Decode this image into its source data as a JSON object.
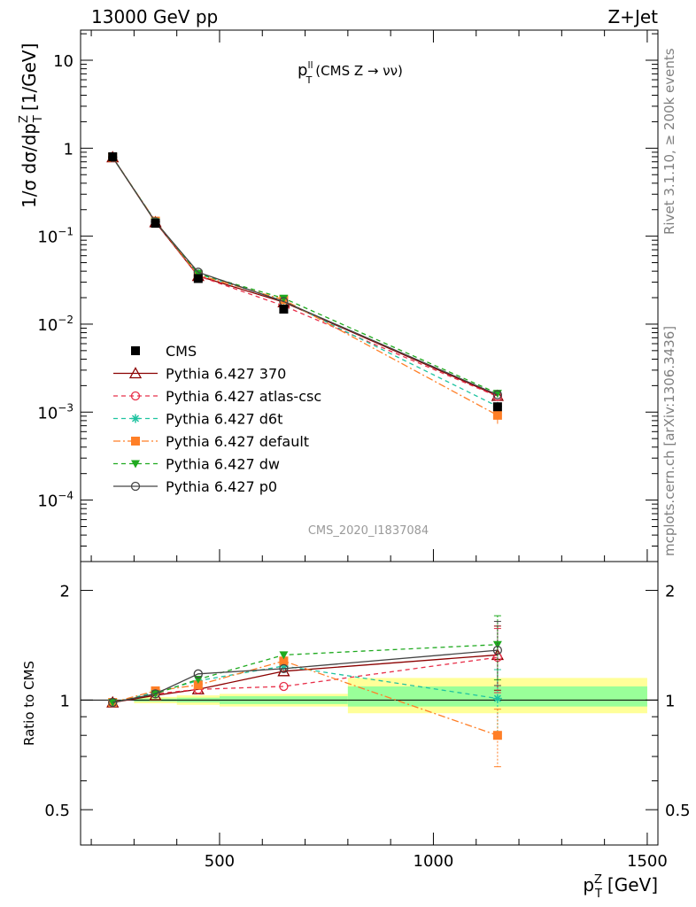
{
  "header": {
    "left": "13000 GeV pp",
    "right": "Z+Jet"
  },
  "side_labels": {
    "rivet": "Rivet 3.1.10, ≥ 200k events",
    "mcplots": "mcplots.cern.ch [arXiv:1306.3436]"
  },
  "watermark": "CMS_2020_I1837084",
  "chart_data": {
    "type": "line",
    "title_main": "p",
    "title_sup": "ll",
    "title_sub": "T",
    "title_rest": "(CMS Z → νν)",
    "ylabel": "1/σ dσ/dp",
    "ylabel_sup": "Z",
    "ylabel_sub": "T",
    "ylabel_units": "[1/GeV]",
    "xlabel": "p",
    "xlabel_sup": "Z",
    "xlabel_sub": "T",
    "xlabel_units": "[GeV]",
    "ratio_ylabel": "Ratio to CMS",
    "xlim": [
      175,
      1525
    ],
    "ylim_main": [
      2e-05,
      22
    ],
    "ylim_ratio": [
      0.4,
      2.4
    ],
    "yscale": "log",
    "legend_position": "center-left",
    "x": [
      250,
      350,
      450,
      650,
      1150
    ],
    "xtick_values": [
      500,
      1000,
      1500
    ],
    "xtick_labels": [
      "500",
      "1000",
      "1500"
    ],
    "main_ytick_values": [
      0.0001,
      0.001,
      0.01,
      0.1,
      1,
      10
    ],
    "main_ytick_labels": [
      [
        "10",
        "−4"
      ],
      [
        "10",
        "−3"
      ],
      [
        "10",
        "−2"
      ],
      [
        "10",
        "−1"
      ],
      [
        "1",
        ""
      ],
      [
        "10",
        ""
      ]
    ],
    "ratio_ytick_values": [
      0.5,
      1,
      2
    ],
    "ratio_ytick_labels": [
      "0.5",
      "1",
      "2"
    ],
    "data": {
      "name": "CMS",
      "values": [
        0.8,
        0.14,
        0.033,
        0.0148,
        0.00115
      ],
      "color": "#000000"
    },
    "band_bins": [
      [
        300,
        400
      ],
      [
        400,
        500
      ],
      [
        500,
        800
      ],
      [
        800,
        1500
      ]
    ],
    "band_yellow": [
      [
        0.98,
        1.02
      ],
      [
        0.97,
        1.03
      ],
      [
        0.96,
        1.04
      ],
      [
        0.92,
        1.15
      ]
    ],
    "band_green": [
      [
        0.99,
        1.01
      ],
      [
        0.985,
        1.015
      ],
      [
        0.975,
        1.025
      ],
      [
        0.96,
        1.09
      ]
    ],
    "series": [
      {
        "name": "Pythia 6.427 370",
        "color": "#8b0000",
        "dash": "",
        "marker": "triangle",
        "ratio": [
          0.985,
          1.03,
          1.07,
          1.2,
          1.33
        ]
      },
      {
        "name": "Pythia 6.427 atlas-csc",
        "color": "#e8304a",
        "dash": "5,4",
        "marker": "circle-open",
        "ratio": [
          0.985,
          1.04,
          1.07,
          1.09,
          1.31
        ]
      },
      {
        "name": "Pythia 6.427 d6t",
        "color": "#1fc3a0",
        "dash": "5,4",
        "marker": "star",
        "ratio": [
          0.985,
          1.05,
          1.13,
          1.24,
          1.01
        ]
      },
      {
        "name": "Pythia 6.427 default",
        "color": "#ff7f27",
        "dash": "8,3,2,3",
        "marker": "square",
        "ratio": [
          0.985,
          1.06,
          1.1,
          1.28,
          0.8
        ]
      },
      {
        "name": "Pythia 6.427 dw",
        "color": "#1faa1f",
        "dash": "5,4",
        "marker": "triangle-down",
        "ratio": [
          0.985,
          1.04,
          1.14,
          1.33,
          1.42
        ]
      },
      {
        "name": "Pythia 6.427 p0",
        "color": "#444444",
        "dash": "",
        "marker": "circle-open",
        "ratio": [
          0.985,
          1.04,
          1.18,
          1.22,
          1.37
        ]
      }
    ]
  }
}
